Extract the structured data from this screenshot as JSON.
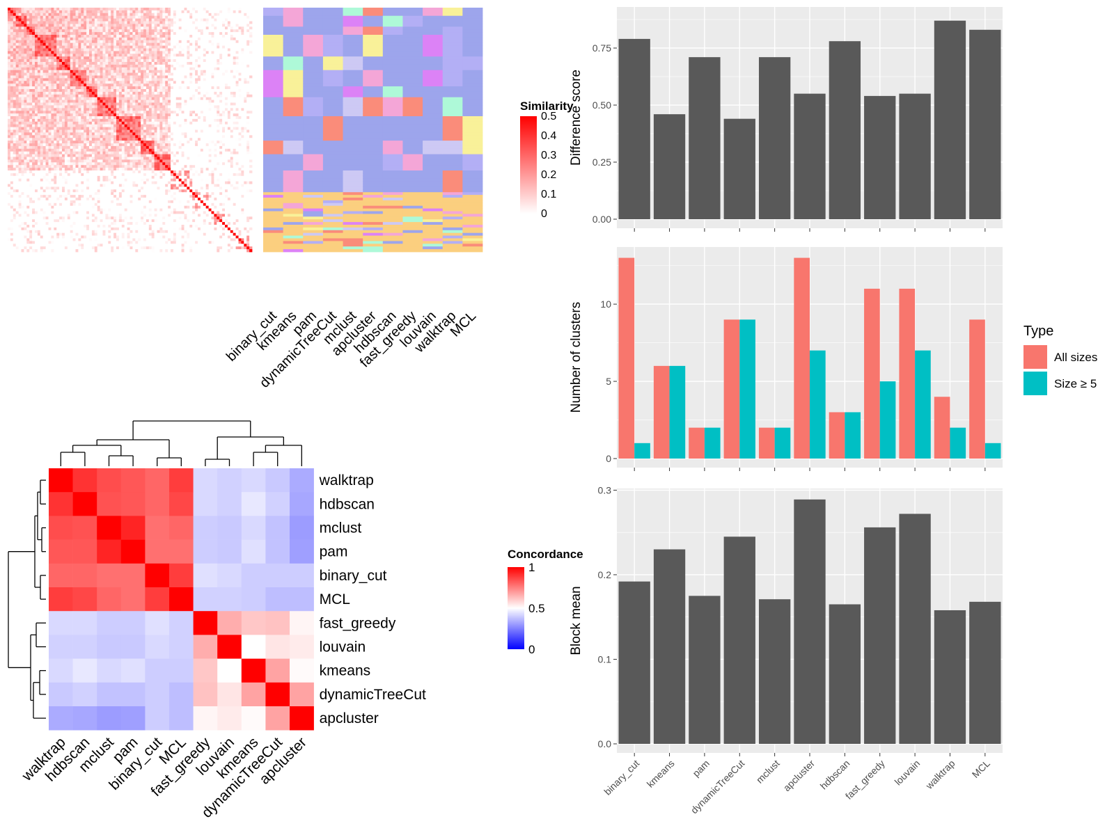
{
  "chart_data": [
    {
      "type": "heatmap",
      "legend_title": "Similarity",
      "legend_ticks": [
        "0",
        "0.1",
        "0.2",
        "0.3",
        "0.4",
        "0.5"
      ],
      "colors": {
        "low": "#ffffff",
        "high": "#ff0000"
      },
      "n_items": 90,
      "block_sizes": [
        3,
        4,
        3,
        8,
        5,
        6,
        4,
        7,
        9,
        5,
        6,
        8,
        7,
        5,
        4,
        6
      ],
      "annotation_columns": [
        "binary_cut",
        "kmeans",
        "pam",
        "dynamicTreeCut",
        "mclust",
        "apcluster",
        "hdbscan",
        "fast_greedy",
        "louvain",
        "walktrap",
        "MCL"
      ]
    },
    {
      "type": "heatmap",
      "legend_title": "Concordance",
      "legend_ticks": [
        "0",
        "0.5",
        "1"
      ],
      "colors": {
        "low": "#0000ff",
        "mid": "#ffffff",
        "high": "#ff0000"
      },
      "rows": [
        "walktrap",
        "hdbscan",
        "mclust",
        "pam",
        "binary_cut",
        "MCL",
        "fast_greedy",
        "louvain",
        "kmeans",
        "dynamicTreeCut",
        "apcluster"
      ],
      "columns": [
        "walktrap",
        "hdbscan",
        "mclust",
        "pam",
        "binary_cut",
        "MCL",
        "fast_greedy",
        "louvain",
        "kmeans",
        "dynamicTreeCut",
        "apcluster"
      ],
      "values": [
        [
          1.0,
          0.9,
          0.85,
          0.83,
          0.8,
          0.88,
          0.4,
          0.38,
          0.4,
          0.36,
          0.28
        ],
        [
          0.9,
          1.0,
          0.84,
          0.83,
          0.8,
          0.86,
          0.4,
          0.38,
          0.44,
          0.38,
          0.27
        ],
        [
          0.85,
          0.84,
          1.0,
          0.93,
          0.78,
          0.8,
          0.37,
          0.36,
          0.4,
          0.34,
          0.24
        ],
        [
          0.83,
          0.83,
          0.93,
          1.0,
          0.78,
          0.78,
          0.37,
          0.36,
          0.42,
          0.34,
          0.25
        ],
        [
          0.8,
          0.8,
          0.78,
          0.78,
          1.0,
          0.88,
          0.42,
          0.4,
          0.37,
          0.37,
          0.37
        ],
        [
          0.88,
          0.86,
          0.8,
          0.78,
          0.88,
          1.0,
          0.38,
          0.38,
          0.37,
          0.33,
          0.33
        ],
        [
          0.4,
          0.4,
          0.37,
          0.37,
          0.42,
          0.38,
          1.0,
          0.66,
          0.61,
          0.62,
          0.52
        ],
        [
          0.38,
          0.38,
          0.36,
          0.36,
          0.4,
          0.38,
          0.66,
          1.0,
          0.5,
          0.55,
          0.54
        ],
        [
          0.4,
          0.44,
          0.4,
          0.42,
          0.37,
          0.37,
          0.61,
          0.5,
          1.0,
          0.68,
          0.51
        ],
        [
          0.36,
          0.38,
          0.34,
          0.34,
          0.37,
          0.33,
          0.62,
          0.55,
          0.68,
          1.0,
          0.68
        ],
        [
          0.28,
          0.27,
          0.24,
          0.25,
          0.37,
          0.33,
          0.52,
          0.54,
          0.51,
          0.68,
          1.0
        ]
      ]
    },
    {
      "type": "bar",
      "categories": [
        "binary_cut",
        "kmeans",
        "pam",
        "dynamicTreeCut",
        "mclust",
        "apcluster",
        "hdbscan",
        "fast_greedy",
        "louvain",
        "walktrap",
        "MCL"
      ],
      "ylabel": "Difference score",
      "values": [
        0.79,
        0.46,
        0.71,
        0.44,
        0.71,
        0.55,
        0.78,
        0.54,
        0.55,
        0.87,
        0.83
      ],
      "ylim": [
        0,
        0.93
      ],
      "yticks": [
        "0.00",
        "0.25",
        "0.50",
        "0.75"
      ],
      "bar_color": "#595959"
    },
    {
      "type": "bar",
      "categories": [
        "binary_cut",
        "kmeans",
        "pam",
        "dynamicTreeCut",
        "mclust",
        "apcluster",
        "hdbscan",
        "fast_greedy",
        "louvain",
        "walktrap",
        "MCL"
      ],
      "ylabel": "Number of clusters",
      "ylim": [
        0,
        13.7
      ],
      "yticks": [
        "0",
        "5",
        "10"
      ],
      "legend_title": "Type",
      "series": [
        {
          "name": "All sizes",
          "color": "#F8766D",
          "values": [
            13,
            6,
            2,
            9,
            2,
            13,
            3,
            11,
            11,
            4,
            9
          ]
        },
        {
          "name": "Size ≥ 5",
          "color": "#00BFC4",
          "values": [
            1,
            6,
            2,
            9,
            2,
            7,
            3,
            5,
            7,
            2,
            1
          ]
        }
      ]
    },
    {
      "type": "bar",
      "categories": [
        "binary_cut",
        "kmeans",
        "pam",
        "dynamicTreeCut",
        "mclust",
        "apcluster",
        "hdbscan",
        "fast_greedy",
        "louvain",
        "walktrap",
        "MCL"
      ],
      "ylabel": "Block mean",
      "values": [
        0.192,
        0.23,
        0.175,
        0.245,
        0.171,
        0.289,
        0.165,
        0.256,
        0.272,
        0.158,
        0.168
      ],
      "ylim": [
        0,
        0.302
      ],
      "yticks": [
        "0.0",
        "0.1",
        "0.2",
        "0.3"
      ],
      "bar_color": "#595959"
    }
  ]
}
